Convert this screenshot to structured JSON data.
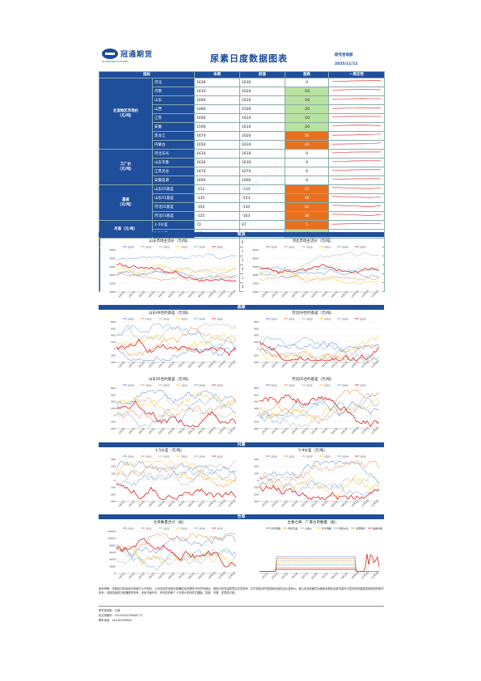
{
  "header": {
    "logo_text": "冠通期货",
    "logo_sub": "GUANTONG FUTURES",
    "title": "尿素日度数据图表",
    "dept": "研究咨询部",
    "date": "2025/11/12"
  },
  "table": {
    "columns": [
      "指标",
      "",
      "本期",
      "前值",
      "涨跌",
      "一周走势"
    ],
    "groups": [
      {
        "name": "主流地区市场价\n（元/吨）",
        "rows": [
          {
            "name": "河北",
            "cur": "1630",
            "prev": "1630",
            "chg": "0",
            "sign": "zero",
            "trend": [
              0.5,
              0.52,
              0.55,
              0.6,
              0.62,
              0.62
            ]
          },
          {
            "name": "河南",
            "cur": "1610",
            "prev": "1620",
            "chg": "-10",
            "sign": "neg",
            "trend": [
              0.5,
              0.55,
              0.6,
              0.65,
              0.62,
              0.58
            ]
          },
          {
            "name": "山东",
            "cur": "1600",
            "prev": "1610",
            "chg": "-10",
            "sign": "neg",
            "trend": [
              0.45,
              0.5,
              0.55,
              0.6,
              0.57,
              0.55
            ]
          },
          {
            "name": "山西",
            "cur": "1480",
            "prev": "1500",
            "chg": "-20",
            "sign": "neg",
            "trend": [
              0.4,
              0.45,
              0.5,
              0.55,
              0.52,
              0.48
            ]
          },
          {
            "name": "江苏",
            "cur": "1600",
            "prev": "1610",
            "chg": "-10",
            "sign": "neg",
            "trend": [
              0.5,
              0.55,
              0.58,
              0.6,
              0.58,
              0.55
            ]
          },
          {
            "name": "安徽",
            "cur": "1590",
            "prev": "1610",
            "chg": "-20",
            "sign": "neg",
            "trend": [
              0.5,
              0.55,
              0.6,
              0.62,
              0.58,
              0.52
            ]
          },
          {
            "name": "黑龙江",
            "cur": "1670",
            "prev": "1620",
            "chg": "50",
            "sign": "pos",
            "trend": [
              0.4,
              0.42,
              0.45,
              0.48,
              0.5,
              0.65
            ]
          },
          {
            "name": "内蒙古",
            "cur": "1650",
            "prev": "1610",
            "chg": "40",
            "sign": "pos",
            "trend": [
              0.4,
              0.42,
              0.44,
              0.46,
              0.5,
              0.62
            ]
          }
        ]
      },
      {
        "name": "工厂价\n（元/吨）",
        "rows": [
          {
            "name": "河北东光",
            "cur": "1610",
            "prev": "1610",
            "chg": "0",
            "sign": "zero",
            "trend": [
              0.45,
              0.5,
              0.55,
              0.58,
              0.58,
              0.58
            ]
          },
          {
            "name": "山东华鲁",
            "cur": "1630",
            "prev": "1630",
            "chg": "0",
            "sign": "zero",
            "trend": [
              0.45,
              0.5,
              0.55,
              0.6,
              0.6,
              0.6
            ]
          },
          {
            "name": "江苏灵谷",
            "cur": "1670",
            "prev": "1670",
            "chg": "0",
            "sign": "zero",
            "trend": [
              0.45,
              0.5,
              0.55,
              0.6,
              0.6,
              0.6
            ]
          },
          {
            "name": "安徽昊源",
            "cur": "1600",
            "prev": "1600",
            "chg": "0",
            "sign": "zero",
            "trend": [
              0.5,
              0.52,
              0.55,
              0.58,
              0.58,
              0.58
            ]
          }
        ]
      },
      {
        "name": "基差\n（元/吨）",
        "rows": [
          {
            "name": "山东05基差",
            "cur": "-112",
            "prev": "-134",
            "chg": "22",
            "sign": "pos",
            "trend": [
              0.6,
              0.55,
              0.5,
              0.45,
              0.4,
              0.5
            ]
          },
          {
            "name": "山东01基差",
            "cur": "-135",
            "prev": "-153",
            "chg": "18",
            "sign": "pos",
            "trend": [
              0.6,
              0.55,
              0.5,
              0.45,
              0.4,
              0.5
            ]
          },
          {
            "name": "河北05基差",
            "cur": "-102",
            "prev": "-144",
            "chg": "42",
            "sign": "pos",
            "trend": [
              0.6,
              0.55,
              0.5,
              0.42,
              0.35,
              0.55
            ]
          },
          {
            "name": "河北01基差",
            "cur": "-125",
            "prev": "-163",
            "chg": "38",
            "sign": "pos",
            "trend": [
              0.6,
              0.55,
              0.5,
              0.42,
              0.35,
              0.55
            ]
          }
        ]
      },
      {
        "name": "月差（元/吨）",
        "rows": [
          {
            "name": "1-5价差",
            "cur": "72",
            "prev": "67",
            "chg": "5",
            "sign": "pos",
            "trend": [
              0.4,
              0.45,
              0.5,
              0.48,
              0.5,
              0.55
            ]
          },
          {
            "name": "5-9价差",
            "cur": "-23",
            "prev": "-19",
            "chg": "-4",
            "sign": "neg",
            "trend": [
              0.55,
              0.5,
              0.5,
              0.48,
              0.5,
              0.45
            ]
          }
        ]
      },
      {
        "name": "仓单数量（张）",
        "rows": [
          {
            "name": "仓单数量合计",
            "cur": "6958",
            "prev": "6812",
            "chg": "146",
            "sign": "pos",
            "trend": [
              0.3,
              0.35,
              0.45,
              0.5,
              0.55,
              0.65
            ]
          }
        ]
      },
      {
        "name": "前一日国际报价：\n大颗粒（美元/吨）",
        "rows": [
          {
            "name": "中东FOB",
            "cur": "378",
            "prev": "378",
            "chg": "0",
            "sign": "zero",
            "trend": [
              0.5,
              0.5,
              0.5,
              0.5,
              0.5,
              0.5
            ]
          },
          {
            "name": "埃及FOB",
            "cur": "389.5",
            "prev": "389.5",
            "chg": "0",
            "sign": "zero",
            "trend": [
              0.5,
              0.5,
              0.5,
              0.5,
              0.5,
              0.5
            ]
          },
          {
            "name": "埃及FOB",
            "cur": "486",
            "prev": "486",
            "chg": "0",
            "sign": "zero",
            "trend": [
              0.5,
              0.5,
              0.5,
              0.5,
              0.5,
              0.5
            ]
          },
          {
            "name": "波罗的海FOB",
            "cur": "380",
            "prev": "380",
            "chg": "0",
            "sign": "zero",
            "trend": [
              0.5,
              0.5,
              0.5,
              0.5,
              0.5,
              0.5
            ]
          },
          {
            "name": "巴西CFR",
            "cur": "425",
            "prev": "425",
            "chg": "0",
            "sign": "zero",
            "trend": [
              0.5,
              0.5,
              0.5,
              0.5,
              0.5,
              0.5
            ]
          }
        ]
      }
    ]
  },
  "sections": {
    "spot": "现货",
    "basis": "基差",
    "spread": "月差",
    "warrant": "仓单"
  },
  "charts": {
    "c1": {
      "title": "山东市场主流价（元/吨）",
      "yticks": [
        "3500",
        "3000",
        "2500",
        "2000",
        "1500",
        "1000"
      ],
      "legend": [
        "2020",
        "2021",
        "2022",
        "2023",
        "2024",
        "2025"
      ]
    },
    "c2": {
      "title": "河北市场主流价（元/吨）",
      "yticks": [
        "3500",
        "3000",
        "2500",
        "2000",
        "1500",
        "1000"
      ],
      "legend": [
        "2020",
        "2021",
        "2022",
        "2023",
        "2024",
        "2025"
      ]
    },
    "c3": {
      "title": "山东09合约基差（元/吨）",
      "yticks": [
        "800",
        "600",
        "400",
        "200",
        "0",
        "-200",
        "-400"
      ],
      "legend": [
        "2020",
        "2021",
        "2022",
        "2023",
        "2024",
        "2025"
      ]
    },
    "c4": {
      "title": "河北09合约基差（元/吨）",
      "yticks": [
        "800",
        "600",
        "400",
        "200",
        "0",
        "-200",
        "-400"
      ],
      "legend": [
        "2020",
        "2021",
        "2022",
        "2023",
        "2024",
        "2025"
      ]
    },
    "c5": {
      "title": "山东05合约基差（元/吨）",
      "yticks": [
        "800",
        "600",
        "400",
        "200",
        "0",
        "-200",
        "-400"
      ],
      "legend": [
        "2020",
        "2021",
        "2022",
        "2023",
        "2024",
        "2025"
      ]
    },
    "c6": {
      "title": "河北05合约基差（元/吨）",
      "yticks": [
        "800",
        "600",
        "400",
        "200",
        "0",
        "-200",
        "-400"
      ],
      "legend": [
        "2020",
        "2021",
        "2022",
        "2023",
        "2024",
        "2025"
      ]
    },
    "c7": {
      "title": "1-5价差（元/吨）",
      "yticks": [
        "300",
        "200",
        "100",
        "0",
        "-100",
        "-200",
        "-300"
      ],
      "legend": [
        "2020",
        "2021",
        "2022",
        "2023",
        "2024",
        "2025"
      ]
    },
    "c8": {
      "title": "5-9价差（元/吨）",
      "yticks": [
        "300",
        "200",
        "100",
        "0",
        "-100",
        "-200",
        "-300"
      ],
      "legend": [
        "2020",
        "2021",
        "2022",
        "2023",
        "2024",
        "2025"
      ]
    },
    "c9": {
      "title": "仓单数量合计（张）",
      "yticks": [
        "12000",
        "10000",
        "8000",
        "6000",
        "4000",
        "2000",
        "0"
      ],
      "legend": [
        "2020",
        "2021",
        "2022",
        "2023",
        "2024",
        "2025"
      ]
    },
    "c10": {
      "title": "主要仓库、厂库仓单数量（张）",
      "yticks": [],
      "legend": [
        "中农控股",
        "中化华谊",
        "心连心",
        "东平瑞星",
        "中原大化",
        "河南晋开",
        "新疆中能"
      ]
    },
    "months": [
      "1月1日",
      "2月1日",
      "3月1日",
      "4月1日",
      "5月1日",
      "6月1日",
      "7月1日",
      "8月1日",
      "9月1日",
      "10月1日",
      "11月1日",
      "12月1日"
    ]
  },
  "footer": {
    "disclaimer_title": "免责声明",
    "disclaimer": "免责声明：本报告中的信息均来源于公开资料，公司对这些信息的准确性及完整性不作任何保证。报告中的内容和意见仅供参考，并不构成对所述品种买卖的出价或询价。我公司及其雇员对使用本报告及其内容所引发的任何直接或间接损失概不负责。本报告版权归冠通期货所有，未经书面许可，任何机构和个人不得以任何形式翻版、复制、刊登、发表或引用。",
    "analyst": "研究咨询部：王静",
    "license": "执业资格号：F0235424/Z0000771",
    "phone": "联系电话：010-85356618",
    "colors": {
      "s2020": "#4472c4",
      "s2021": "#ed7d31",
      "s2022": "#a5a5a5",
      "s2023": "#ffc000",
      "s2024": "#5b9bd5",
      "s2025": "#e02020"
    }
  }
}
